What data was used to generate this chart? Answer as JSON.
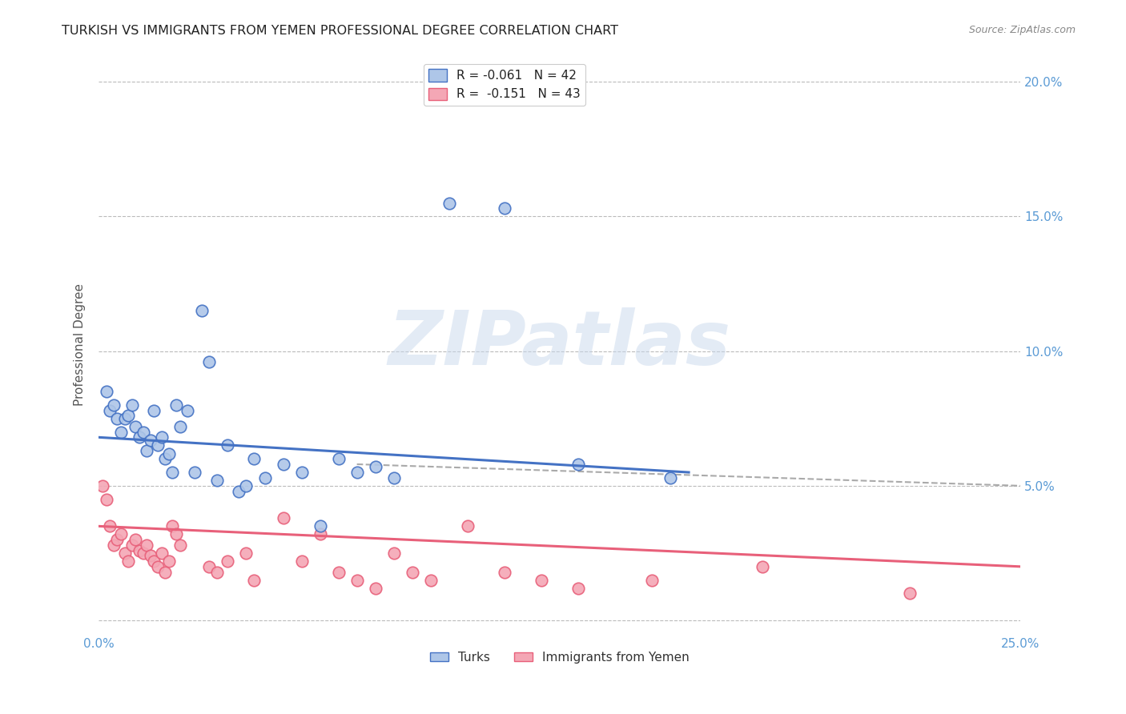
{
  "title": "TURKISH VS IMMIGRANTS FROM YEMEN PROFESSIONAL DEGREE CORRELATION CHART",
  "source": "Source: ZipAtlas.com",
  "ylabel": "Professional Degree",
  "xlim": [
    0.0,
    25.0
  ],
  "ylim": [
    -0.5,
    21.0
  ],
  "xticks": [
    0.0,
    5.0,
    10.0,
    15.0,
    20.0,
    25.0
  ],
  "yticks": [
    0.0,
    5.0,
    10.0,
    15.0,
    20.0
  ],
  "xtick_labels_bottom": [
    "0.0%",
    "",
    "",
    "",
    "",
    "25.0%"
  ],
  "ytick_labels_left": [
    "",
    "",
    "",
    "",
    ""
  ],
  "ytick_labels_right": [
    "",
    "5.0%",
    "10.0%",
    "15.0%",
    "20.0%"
  ],
  "legend_entries": [
    {
      "label": "R = -0.061   N = 42",
      "color": "#aec6e8"
    },
    {
      "label": "R =  -0.151   N = 43",
      "color": "#f4a7b5"
    }
  ],
  "turks_x": [
    0.2,
    0.3,
    0.4,
    0.5,
    0.6,
    0.7,
    0.8,
    0.9,
    1.0,
    1.1,
    1.2,
    1.3,
    1.4,
    1.5,
    1.6,
    1.7,
    1.8,
    1.9,
    2.0,
    2.1,
    2.2,
    2.4,
    2.6,
    2.8,
    3.0,
    3.2,
    3.5,
    3.8,
    4.0,
    4.2,
    4.5,
    5.0,
    5.5,
    6.0,
    6.5,
    7.0,
    7.5,
    8.0,
    9.5,
    11.0,
    13.0,
    15.5
  ],
  "turks_y": [
    8.5,
    7.8,
    8.0,
    7.5,
    7.0,
    7.5,
    7.6,
    8.0,
    7.2,
    6.8,
    7.0,
    6.3,
    6.7,
    7.8,
    6.5,
    6.8,
    6.0,
    6.2,
    5.5,
    8.0,
    7.2,
    7.8,
    5.5,
    11.5,
    9.6,
    5.2,
    6.5,
    4.8,
    5.0,
    6.0,
    5.3,
    5.8,
    5.5,
    3.5,
    6.0,
    5.5,
    5.7,
    5.3,
    15.5,
    15.3,
    5.8,
    5.3
  ],
  "yemen_x": [
    0.1,
    0.2,
    0.3,
    0.4,
    0.5,
    0.6,
    0.7,
    0.8,
    0.9,
    1.0,
    1.1,
    1.2,
    1.3,
    1.4,
    1.5,
    1.6,
    1.7,
    1.8,
    1.9,
    2.0,
    2.1,
    2.2,
    3.0,
    3.2,
    3.5,
    4.0,
    4.2,
    5.0,
    5.5,
    6.0,
    6.5,
    7.0,
    7.5,
    8.0,
    8.5,
    9.0,
    10.0,
    11.0,
    12.0,
    13.0,
    15.0,
    18.0,
    22.0
  ],
  "yemen_y": [
    5.0,
    4.5,
    3.5,
    2.8,
    3.0,
    3.2,
    2.5,
    2.2,
    2.8,
    3.0,
    2.6,
    2.5,
    2.8,
    2.4,
    2.2,
    2.0,
    2.5,
    1.8,
    2.2,
    3.5,
    3.2,
    2.8,
    2.0,
    1.8,
    2.2,
    2.5,
    1.5,
    3.8,
    2.2,
    3.2,
    1.8,
    1.5,
    1.2,
    2.5,
    1.8,
    1.5,
    3.5,
    1.8,
    1.5,
    1.2,
    1.5,
    2.0,
    1.0
  ],
  "blue_line_x": [
    0.0,
    16.0
  ],
  "blue_line_y": [
    6.8,
    5.5
  ],
  "dashed_line_x": [
    7.0,
    25.0
  ],
  "dashed_line_y": [
    5.8,
    5.0
  ],
  "pink_line_x": [
    0.0,
    25.0
  ],
  "pink_line_y": [
    3.5,
    2.0
  ],
  "blue_color": "#4472c4",
  "blue_fill": "#aec6e8",
  "pink_color": "#e8607a",
  "pink_fill": "#f4a7b5",
  "watermark": "ZIPatlas",
  "dot_size": 110,
  "background_color": "#ffffff",
  "grid_color": "#bbbbbb",
  "title_fontsize": 11.5,
  "tick_color": "#5b9bd5"
}
